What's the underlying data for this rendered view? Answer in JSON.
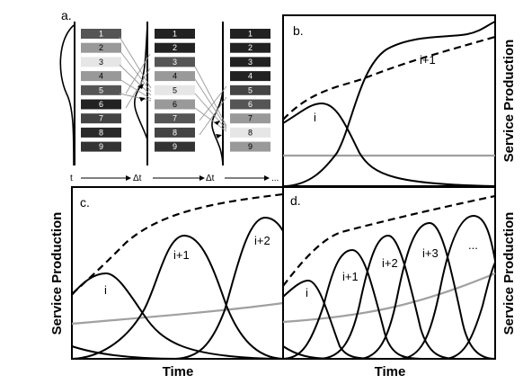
{
  "panels": {
    "a": {
      "letter": "a.",
      "block_labels": [
        "1",
        "2",
        "3",
        "4",
        "5",
        "6",
        "7",
        "8",
        "9"
      ],
      "column_shades": [
        [
          "#555555",
          "#999999",
          "#e6e6e6",
          "#999999",
          "#555555",
          "#222222",
          "#444444",
          "#2a2a2a",
          "#333333"
        ],
        [
          "#222222",
          "#222222",
          "#555555",
          "#999999",
          "#e6e6e6",
          "#999999",
          "#555555",
          "#444444",
          "#333333"
        ],
        [
          "#222222",
          "#222222",
          "#222222",
          "#222222",
          "#444444",
          "#555555",
          "#999999",
          "#e6e6e6",
          "#999999"
        ]
      ],
      "timeline": {
        "t_label": "t",
        "step1": "Δt",
        "step2": "Δt",
        "ellipsis": "..."
      }
    },
    "b": {
      "letter": "b.",
      "labels": [
        "i",
        "i+1"
      ]
    },
    "c": {
      "letter": "c.",
      "labels": [
        "i",
        "i+1",
        "i+2"
      ]
    },
    "d": {
      "letter": "d.",
      "labels": [
        "i",
        "i+1",
        "i+2",
        "i+3",
        "..."
      ]
    }
  },
  "axis_titles": {
    "y_right_top": "Service Production",
    "y_left_bottom": "Service Production",
    "y_right_bottom": "Service Production",
    "x_left": "Time",
    "x_right": "Time"
  },
  "colors": {
    "curve": "#000000",
    "baseline": "#a0a0a0",
    "block_text_light": "#ffffff",
    "block_text_dark": "#000000"
  }
}
